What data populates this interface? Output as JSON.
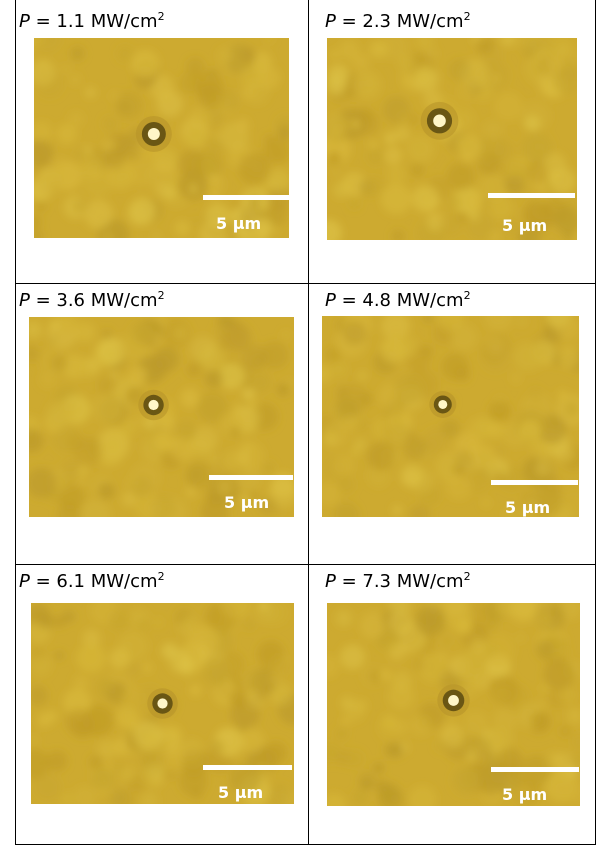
{
  "panels": [
    {
      "power_symbol": "P",
      "power_value": " = 1.1 MW/cm",
      "power_exp": "2",
      "scale_label": "5 µm"
    },
    {
      "power_symbol": "P",
      "power_value": " = 2.3 MW/cm",
      "power_exp": "2",
      "scale_label": "5 µm"
    },
    {
      "power_symbol": "P",
      "power_value": " = 3.6 MW/cm",
      "power_exp": "2",
      "scale_label": "5 µm"
    },
    {
      "power_symbol": "P",
      "power_value": " = 4.8 MW/cm",
      "power_exp": "2",
      "scale_label": "5 µm"
    },
    {
      "power_symbol": "P",
      "power_value": " = 6.1 MW/cm",
      "power_exp": "2",
      "scale_label": "5 µm"
    },
    {
      "power_symbol": "P",
      "power_value": " = 7.3 MW/cm",
      "power_exp": "2",
      "scale_label": "5 µm"
    }
  ],
  "colors": {
    "background_field": "#cdaa30",
    "particle_ring": "#5a4a10",
    "particle_core": "#fff6c8",
    "scale_bar": "#ffffff",
    "grid_lines": "#000000"
  }
}
